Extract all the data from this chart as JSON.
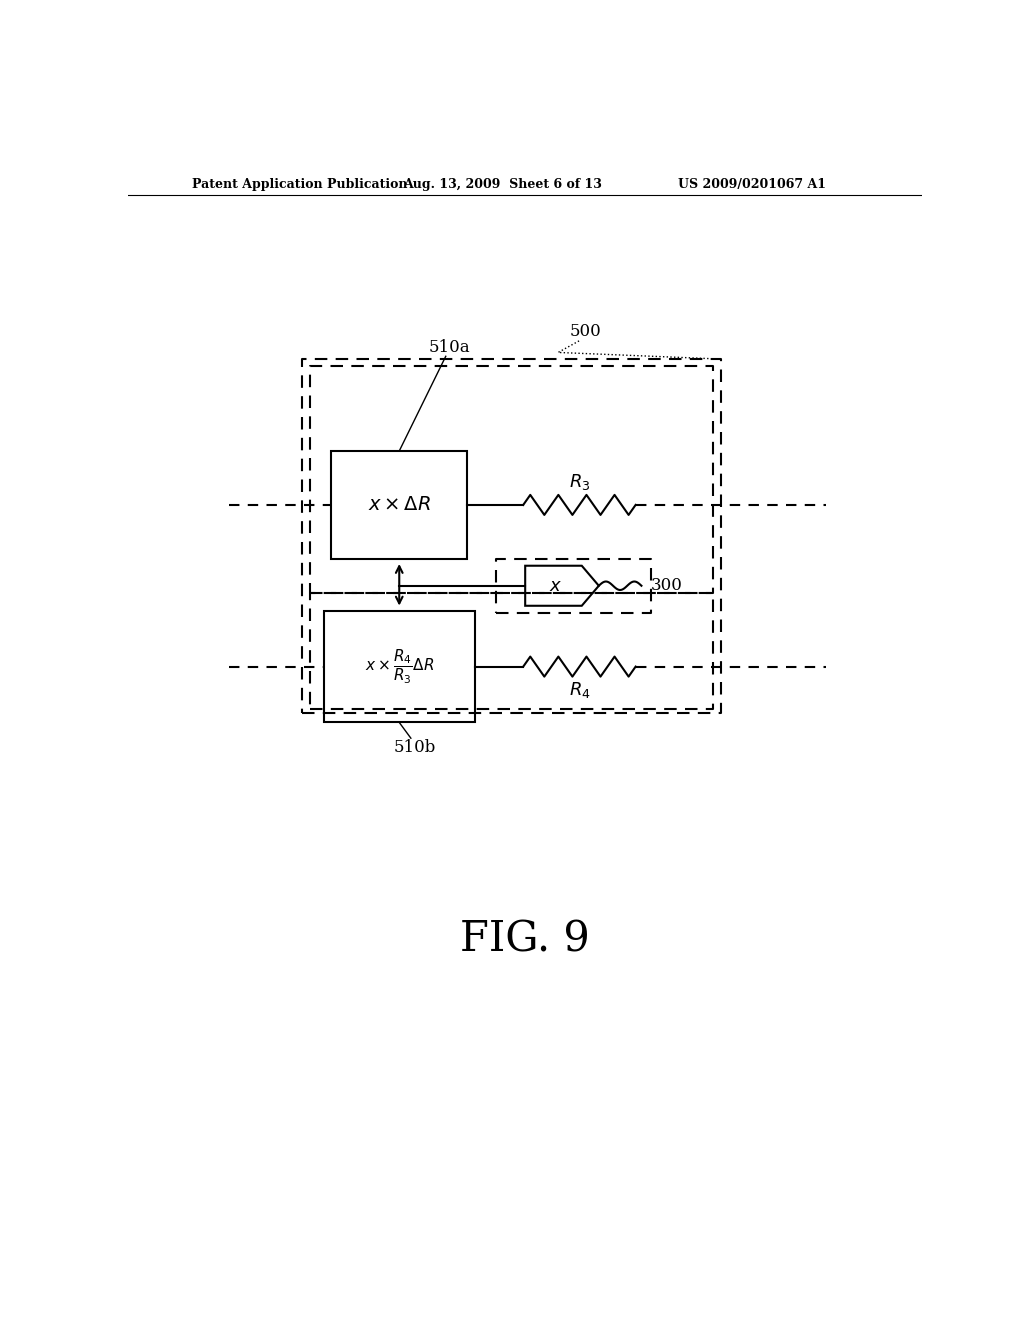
{
  "bg_color": "#ffffff",
  "header_left": "Patent Application Publication",
  "header_center": "Aug. 13, 2009  Sheet 6 of 13",
  "header_right": "US 2009/0201067 A1",
  "fig_label": "FIG. 9",
  "label_500": "500",
  "label_510a": "510a",
  "label_510b": "510b",
  "label_300": "300",
  "label_R3": "$R_3$",
  "label_R4": "$R_4$",
  "box1_text": "$x \\times \\Delta R$",
  "box2_text": "$x \\times \\dfrac{R_4}{R_3} \\Delta R$",
  "pentagon_text": "$x$",
  "page_width": 10.24,
  "page_height": 13.2
}
